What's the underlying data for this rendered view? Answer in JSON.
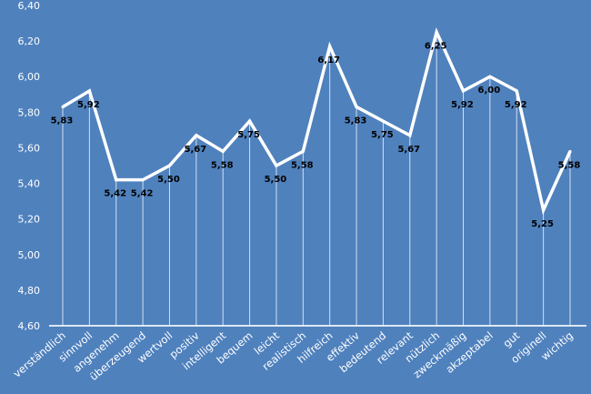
{
  "chart_data": {
    "type": "line",
    "categories": [
      "verständlich",
      "sinnvoll",
      "angenehm",
      "überzeugend",
      "wertvoll",
      "positiv",
      "intelligent",
      "bequem",
      "leicht",
      "realistisch",
      "hilfreich",
      "effektiv",
      "bedeutend",
      "relevant",
      "nützlich",
      "zweckmäßig",
      "akzeptabel",
      "gut",
      "originell",
      "wichtig"
    ],
    "values": [
      5.83,
      5.92,
      5.42,
      5.42,
      5.5,
      5.67,
      5.58,
      5.75,
      5.5,
      5.58,
      6.17,
      5.83,
      5.75,
      5.67,
      6.25,
      5.92,
      6.0,
      5.92,
      5.25,
      5.58
    ],
    "data_labels": [
      "5,83",
      "5,92",
      "5,42",
      "5,42",
      "5,50",
      "5,67",
      "5,58",
      "5,75",
      "5,50",
      "5,58",
      "6,17",
      "5,83",
      "5,75",
      "5,67",
      "6,25",
      "5,92",
      "6,00",
      "5,92",
      "5,25",
      "5,58"
    ],
    "ylim": [
      4.6,
      6.4
    ],
    "yticks": [
      "4,60",
      "4,80",
      "5,00",
      "5,20",
      "5,40",
      "5,60",
      "5,80",
      "6,00",
      "6,20",
      "6,40"
    ],
    "grid": false,
    "drop_lines": true,
    "colors": {
      "background": "#4f81bd",
      "line": "#ffffff",
      "labels": "#000000"
    }
  }
}
